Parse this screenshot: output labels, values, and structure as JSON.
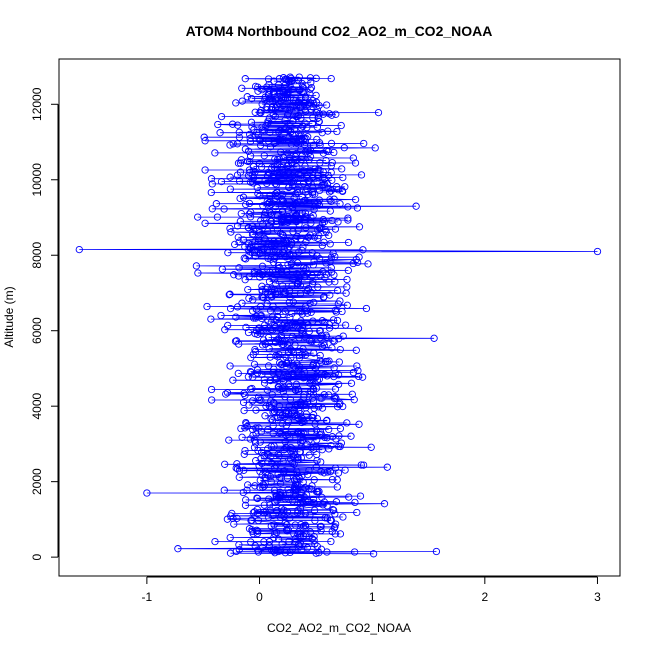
{
  "chart_data": {
    "type": "scatter",
    "title": "ATOM4 Northbound CO2_AO2_m_CO2_NOAA",
    "xlabel": "CO2_AO2_m_CO2_NOAA",
    "ylabel": "Altitude (m)",
    "xlim": [
      -1.78,
      3.2
    ],
    "ylim": [
      -500,
      13200
    ],
    "xticks": [
      -1,
      0,
      1,
      2,
      3
    ],
    "yticks": [
      0,
      2000,
      4000,
      6000,
      8000,
      10000,
      12000
    ],
    "grid": false,
    "legend": "none",
    "marker": "open-circle",
    "connected": true,
    "series": [
      {
        "color": "#0000ff"
      }
    ],
    "notable_points": [
      {
        "x": -1.6,
        "y": 8150
      },
      {
        "x": 3.0,
        "y": 8100
      },
      {
        "x": -1.0,
        "y": 1700
      },
      {
        "x": 1.57,
        "y": 150
      },
      {
        "x": 1.39,
        "y": 9300
      },
      {
        "x": 1.55,
        "y": 5800
      }
    ]
  },
  "colors": {
    "series": "#0000ff",
    "axes": "#000000",
    "background": "#ffffff"
  }
}
